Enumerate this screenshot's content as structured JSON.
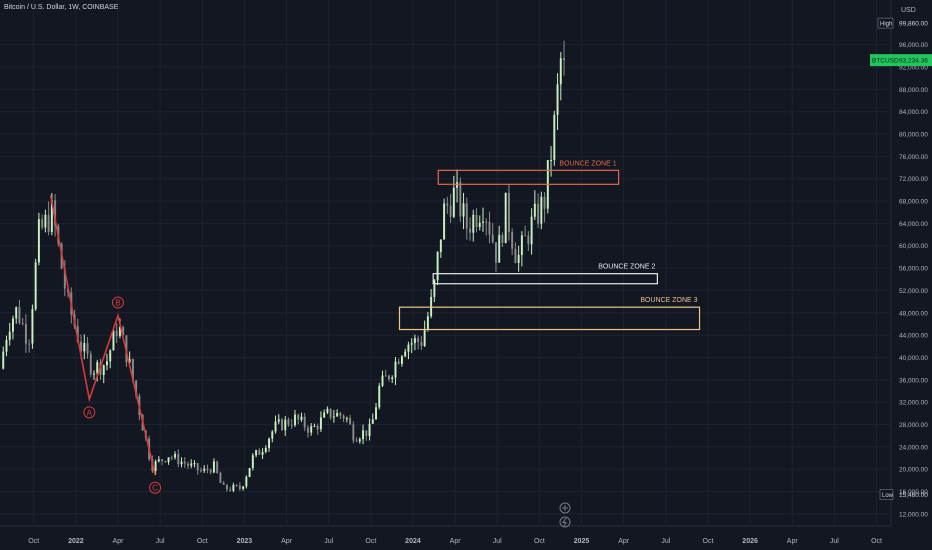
{
  "header": {
    "title": "Bitcoin / U.S. Dollar, 1W, COINBASE"
  },
  "colors": {
    "bg": "#131722",
    "up": "#c8f0c0",
    "down": "#8a8a8a",
    "grid": "#1e2230",
    "wave": "#d63a3a",
    "zone1": "#e06a4a",
    "zone2": "#e8e8e8",
    "zone3": "#f0c48a",
    "axis_text": "#b2b5be",
    "price_tag": "#22c55e"
  },
  "chart_data": {
    "type": "candlestick",
    "title": "Bitcoin / U.S. Dollar, 1W, COINBASE",
    "currency": "USD",
    "y_ticks": [
      "12,000.00",
      "16,000.00",
      "20,000.00",
      "24,000.00",
      "28,000.00",
      "32,000.00",
      "36,000.00",
      "40,000.00",
      "44,000.00",
      "48,000.00",
      "52,000.00",
      "56,000.00",
      "60,000.00",
      "64,000.00",
      "68,000.00",
      "72,000.00",
      "76,000.00",
      "80,000.00",
      "84,000.00",
      "88,000.00",
      "92,000.00",
      "96,000.00"
    ],
    "y_tick_values": [
      12000,
      16000,
      20000,
      24000,
      28000,
      32000,
      36000,
      40000,
      44000,
      48000,
      52000,
      56000,
      60000,
      64000,
      68000,
      72000,
      76000,
      80000,
      84000,
      88000,
      92000,
      96000
    ],
    "x_ticks": [
      {
        "label": "Oct",
        "t": 2021.75,
        "bold": false
      },
      {
        "label": "2022",
        "t": 2022.0,
        "bold": true
      },
      {
        "label": "Apr",
        "t": 2022.25,
        "bold": false
      },
      {
        "label": "Jul",
        "t": 2022.5,
        "bold": false
      },
      {
        "label": "Oct",
        "t": 2022.75,
        "bold": false
      },
      {
        "label": "2023",
        "t": 2023.0,
        "bold": true
      },
      {
        "label": "Apr",
        "t": 2023.25,
        "bold": false
      },
      {
        "label": "Jul",
        "t": 2023.5,
        "bold": false
      },
      {
        "label": "Oct",
        "t": 2023.75,
        "bold": false
      },
      {
        "label": "2024",
        "t": 2024.0,
        "bold": true
      },
      {
        "label": "Apr",
        "t": 2024.25,
        "bold": false
      },
      {
        "label": "Jul",
        "t": 2024.5,
        "bold": false
      },
      {
        "label": "Oct",
        "t": 2024.75,
        "bold": false
      },
      {
        "label": "2025",
        "t": 2025.0,
        "bold": true
      },
      {
        "label": "Apr",
        "t": 2025.25,
        "bold": false
      },
      {
        "label": "Jul",
        "t": 2025.5,
        "bold": false
      },
      {
        "label": "Oct",
        "t": 2025.75,
        "bold": false
      },
      {
        "label": "2026",
        "t": 2026.0,
        "bold": true
      },
      {
        "label": "Apr",
        "t": 2026.25,
        "bold": false
      },
      {
        "label": "Jul",
        "t": 2026.5,
        "bold": false
      },
      {
        "label": "Oct",
        "t": 2026.75,
        "bold": false
      }
    ],
    "ylim": [
      10000,
      104000
    ],
    "xlim": [
      2021.55,
      2026.83
    ],
    "price_label": "BTCUSD",
    "price_value": "93,234.36",
    "current_price": 93234,
    "high_label": "High",
    "high_value": "99,860.00",
    "high": 99860,
    "low_label": "Low",
    "low_value": "15,460.00",
    "low": 15460,
    "zones": [
      {
        "label": "BOUNCE ZONE 1",
        "t0": 2024.15,
        "t1": 2025.22,
        "y_low": 71000,
        "y_high": 73500,
        "color": "#e06a4a"
      },
      {
        "label": "BOUNCE ZONE 2",
        "t0": 2024.12,
        "t1": 2025.45,
        "y_low": 53200,
        "y_high": 55000,
        "color": "#e8e8e8"
      },
      {
        "label": "BOUNCE ZONE 3",
        "t0": 2023.92,
        "t1": 2025.7,
        "y_low": 45000,
        "y_high": 49000,
        "color": "#f0c48a"
      }
    ],
    "waves": [
      {
        "label": "A",
        "t": 2022.08,
        "y": 32500,
        "anchor": "below"
      },
      {
        "label": "B",
        "t": 2022.25,
        "y": 47500,
        "anchor": "above"
      },
      {
        "label": "C",
        "t": 2022.47,
        "y": 19000,
        "anchor": "below"
      }
    ],
    "wave_path": [
      {
        "t": 2021.85,
        "y": 69000
      },
      {
        "t": 2022.08,
        "y": 32500
      },
      {
        "t": 2022.25,
        "y": 47500
      },
      {
        "t": 2022.47,
        "y": 19000
      }
    ],
    "anchors": [
      {
        "t": 2021.55,
        "y": 38000
      },
      {
        "t": 2021.6,
        "y": 46000
      },
      {
        "t": 2021.65,
        "y": 48500
      },
      {
        "t": 2021.72,
        "y": 43000
      },
      {
        "t": 2021.78,
        "y": 62000
      },
      {
        "t": 2021.86,
        "y": 66000
      },
      {
        "t": 2021.95,
        "y": 50000
      },
      {
        "t": 2022.03,
        "y": 42000
      },
      {
        "t": 2022.1,
        "y": 38000
      },
      {
        "t": 2022.18,
        "y": 39000
      },
      {
        "t": 2022.25,
        "y": 46000
      },
      {
        "t": 2022.32,
        "y": 38500
      },
      {
        "t": 2022.38,
        "y": 30000
      },
      {
        "t": 2022.45,
        "y": 20500
      },
      {
        "t": 2022.55,
        "y": 22500
      },
      {
        "t": 2022.65,
        "y": 21000
      },
      {
        "t": 2022.75,
        "y": 19500
      },
      {
        "t": 2022.82,
        "y": 20500
      },
      {
        "t": 2022.87,
        "y": 16500
      },
      {
        "t": 2022.98,
        "y": 16600
      },
      {
        "t": 2023.05,
        "y": 22000
      },
      {
        "t": 2023.1,
        "y": 23500
      },
      {
        "t": 2023.18,
        "y": 27500
      },
      {
        "t": 2023.3,
        "y": 29000
      },
      {
        "t": 2023.4,
        "y": 27000
      },
      {
        "t": 2023.5,
        "y": 30000
      },
      {
        "t": 2023.6,
        "y": 29500
      },
      {
        "t": 2023.65,
        "y": 26000
      },
      {
        "t": 2023.75,
        "y": 27000
      },
      {
        "t": 2023.8,
        "y": 34500
      },
      {
        "t": 2023.87,
        "y": 37500
      },
      {
        "t": 2023.95,
        "y": 42500
      },
      {
        "t": 2024.05,
        "y": 43000
      },
      {
        "t": 2024.12,
        "y": 51000
      },
      {
        "t": 2024.18,
        "y": 66000
      },
      {
        "t": 2024.25,
        "y": 69500
      },
      {
        "t": 2024.32,
        "y": 63500
      },
      {
        "t": 2024.42,
        "y": 67500
      },
      {
        "t": 2024.5,
        "y": 58000
      },
      {
        "t": 2024.55,
        "y": 66500
      },
      {
        "t": 2024.62,
        "y": 57500
      },
      {
        "t": 2024.7,
        "y": 63500
      },
      {
        "t": 2024.78,
        "y": 68000
      },
      {
        "t": 2024.83,
        "y": 79000
      },
      {
        "t": 2024.86,
        "y": 88000
      },
      {
        "t": 2024.89,
        "y": 97000
      },
      {
        "t": 2024.9,
        "y": 93234
      }
    ]
  }
}
